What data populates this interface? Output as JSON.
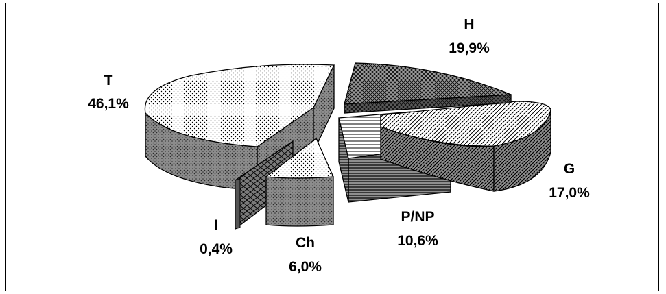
{
  "chart_data": {
    "type": "pie",
    "title": "",
    "slices": [
      {
        "name": "T",
        "value": 46.1,
        "label": "46,1%"
      },
      {
        "name": "H",
        "value": 19.9,
        "label": "19,9%"
      },
      {
        "name": "G",
        "value": 17.0,
        "label": "17,0%"
      },
      {
        "name": "P/NP",
        "value": 10.6,
        "label": "10,6%"
      },
      {
        "name": "Ch",
        "value": 6.0,
        "label": "6,0%"
      },
      {
        "name": "I",
        "value": 0.4,
        "label": "0,4%"
      }
    ],
    "style": "3d-exploded",
    "legend": "none"
  }
}
